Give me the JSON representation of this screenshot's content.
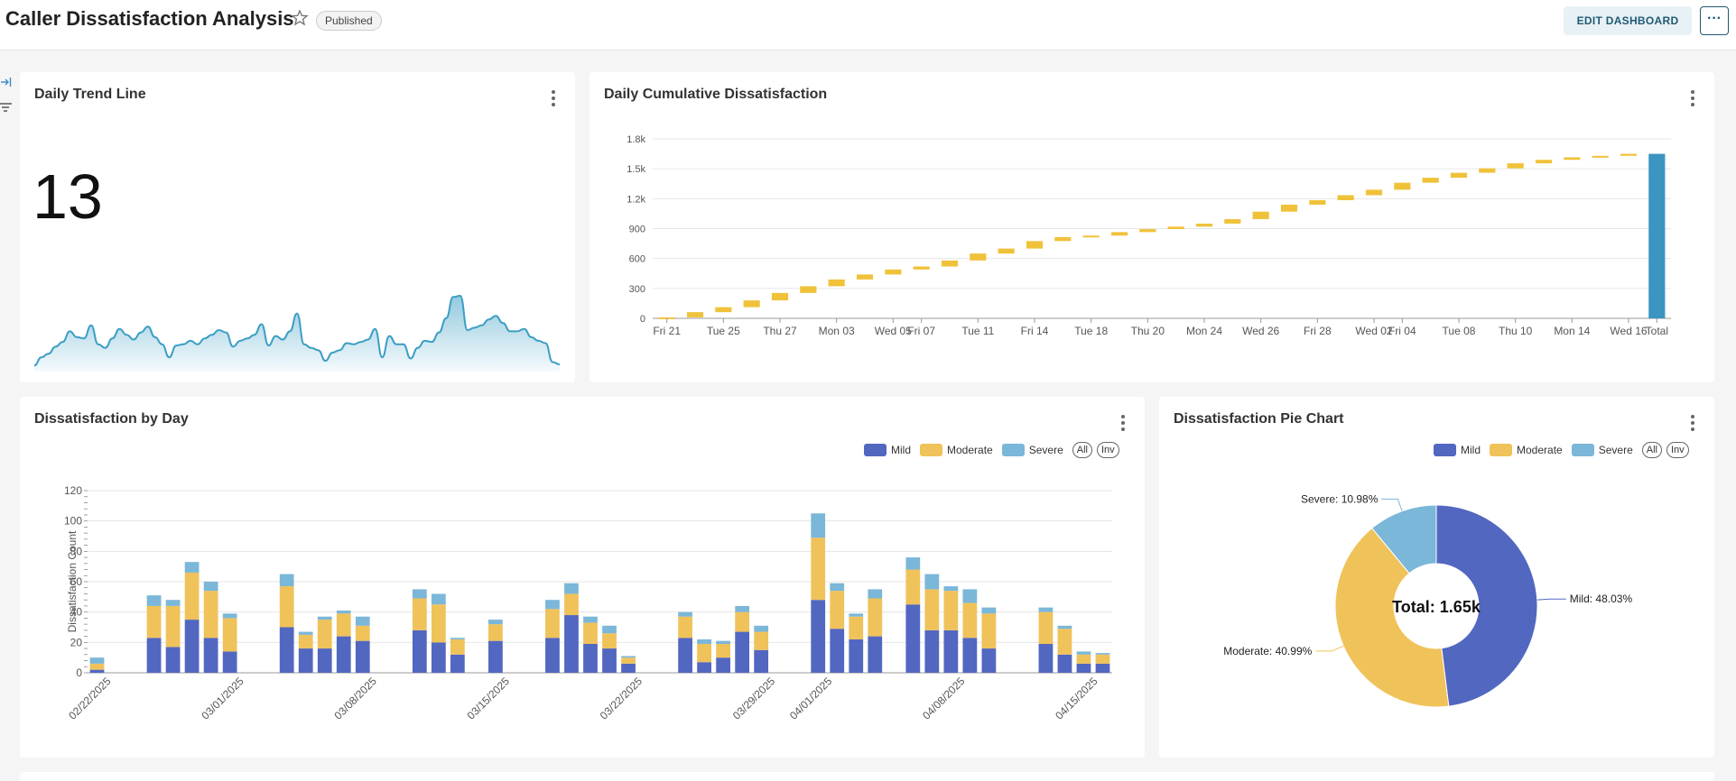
{
  "header": {
    "title": "Caller Dissatisfaction Analysis",
    "status_badge": "Published",
    "edit_button": "EDIT DASHBOARD",
    "more_button": "···"
  },
  "sidebar": {
    "icons": [
      "collapse-sidebar-icon",
      "filter-icon"
    ]
  },
  "colors": {
    "mild": "#5267c0",
    "moderate": "#f0c25a",
    "severe": "#7bb7d9",
    "waterfall": "#f0c23a",
    "total": "#3a95c1",
    "trend": "#3b9ec4"
  },
  "trend_card": {
    "title": "Daily Trend Line",
    "big_number": "13",
    "sparkline": [
      2,
      9,
      12,
      18,
      22,
      31,
      26,
      25,
      36,
      20,
      17,
      25,
      33,
      28,
      24,
      30,
      35,
      26,
      20,
      9,
      19,
      20,
      23,
      20,
      25,
      28,
      32,
      30,
      18,
      23,
      25,
      28,
      37,
      19,
      27,
      24,
      31,
      46,
      20,
      17,
      15,
      6,
      13,
      15,
      21,
      20,
      22,
      24,
      33,
      9,
      27,
      20,
      20,
      8,
      17,
      23,
      22,
      30,
      42,
      60,
      61,
      32,
      34,
      36,
      41,
      44,
      38,
      31,
      31,
      33,
      26,
      23,
      21,
      5,
      3
    ]
  },
  "waterfall_card": {
    "title": "Daily Cumulative Dissatisfaction",
    "chart_data": {
      "type": "bar",
      "subtype": "waterfall",
      "ylim": [
        0,
        1800
      ],
      "yticks": [
        "0",
        "300",
        "600",
        "900",
        "1.2k",
        "1.5k",
        "1.8k"
      ],
      "x_tick_labels": [
        "Fri 21",
        "Tue 25",
        "Thu 27",
        "Mon 03",
        "Wed 05",
        "Fri 07",
        "Tue 11",
        "Fri 14",
        "Tue 18",
        "Thu 20",
        "Mon 24",
        "Wed 26",
        "Fri 28",
        "Wed 02",
        "Fri 04",
        "Tue 08",
        "Thu 10",
        "Mon 14",
        "Wed 16",
        "Total"
      ],
      "cumulative": [
        10,
        62,
        112,
        180,
        255,
        322,
        390,
        440,
        490,
        520,
        580,
        650,
        700,
        775,
        815,
        830,
        865,
        895,
        920,
        950,
        995,
        1070,
        1140,
        1185,
        1235,
        1290,
        1360,
        1410,
        1460,
        1505,
        1555,
        1590,
        1615,
        1630,
        1650
      ],
      "total": 1650
    }
  },
  "day_card": {
    "title": "Dissatisfaction by Day",
    "legend": {
      "items": [
        "Mild",
        "Moderate",
        "Severe"
      ],
      "all": "All",
      "inv": "Inv"
    },
    "chart_data": {
      "type": "bar",
      "stacked": true,
      "ylabel": "Dissatisfaction Count",
      "ylim": [
        0,
        120
      ],
      "yticks": [
        "0",
        "20",
        "40",
        "60",
        "80",
        "100",
        "120"
      ],
      "x_tick_labels": [
        "02/22/2025",
        "03/01/2025",
        "03/08/2025",
        "03/15/2025",
        "03/22/2025",
        "03/29/2025",
        "04/01/2025",
        "04/08/2025",
        "04/15/2025"
      ],
      "bars": [
        {
          "slot": 0,
          "mild": 2,
          "moderate": 4,
          "severe": 4
        },
        {
          "slot": 3,
          "mild": 23,
          "moderate": 21,
          "severe": 7
        },
        {
          "slot": 4,
          "mild": 17,
          "moderate": 27,
          "severe": 4
        },
        {
          "slot": 5,
          "mild": 35,
          "moderate": 31,
          "severe": 7
        },
        {
          "slot": 6,
          "mild": 23,
          "moderate": 31,
          "severe": 6
        },
        {
          "slot": 7,
          "mild": 14,
          "moderate": 22,
          "severe": 3
        },
        {
          "slot": 10,
          "mild": 30,
          "moderate": 27,
          "severe": 8
        },
        {
          "slot": 11,
          "mild": 16,
          "moderate": 9,
          "severe": 2
        },
        {
          "slot": 12,
          "mild": 16,
          "moderate": 19,
          "severe": 2
        },
        {
          "slot": 13,
          "mild": 24,
          "moderate": 15,
          "severe": 2
        },
        {
          "slot": 14,
          "mild": 21,
          "moderate": 10,
          "severe": 6
        },
        {
          "slot": 17,
          "mild": 28,
          "moderate": 21,
          "severe": 6
        },
        {
          "slot": 18,
          "mild": 20,
          "moderate": 25,
          "severe": 7
        },
        {
          "slot": 19,
          "mild": 12,
          "moderate": 10,
          "severe": 1
        },
        {
          "slot": 21,
          "mild": 21,
          "moderate": 11,
          "severe": 3
        },
        {
          "slot": 24,
          "mild": 23,
          "moderate": 19,
          "severe": 6
        },
        {
          "slot": 25,
          "mild": 38,
          "moderate": 14,
          "severe": 7
        },
        {
          "slot": 26,
          "mild": 19,
          "moderate": 14,
          "severe": 4
        },
        {
          "slot": 27,
          "mild": 16,
          "moderate": 10,
          "severe": 5
        },
        {
          "slot": 28,
          "mild": 6,
          "moderate": 4,
          "severe": 1
        },
        {
          "slot": 31,
          "mild": 23,
          "moderate": 14,
          "severe": 3
        },
        {
          "slot": 32,
          "mild": 7,
          "moderate": 12,
          "severe": 3
        },
        {
          "slot": 33,
          "mild": 10,
          "moderate": 9,
          "severe": 2
        },
        {
          "slot": 34,
          "mild": 27,
          "moderate": 13,
          "severe": 4
        },
        {
          "slot": 35,
          "mild": 15,
          "moderate": 12,
          "severe": 4
        },
        {
          "slot": 38,
          "mild": 48,
          "moderate": 41,
          "severe": 16
        },
        {
          "slot": 39,
          "mild": 29,
          "moderate": 25,
          "severe": 5
        },
        {
          "slot": 40,
          "mild": 22,
          "moderate": 15,
          "severe": 2
        },
        {
          "slot": 41,
          "mild": 24,
          "moderate": 25,
          "severe": 6
        },
        {
          "slot": 43,
          "mild": 45,
          "moderate": 23,
          "severe": 8
        },
        {
          "slot": 44,
          "mild": 28,
          "moderate": 27,
          "severe": 10
        },
        {
          "slot": 45,
          "mild": 28,
          "moderate": 26,
          "severe": 3
        },
        {
          "slot": 46,
          "mild": 23,
          "moderate": 23,
          "severe": 9
        },
        {
          "slot": 47,
          "mild": 16,
          "moderate": 23,
          "severe": 4
        },
        {
          "slot": 50,
          "mild": 19,
          "moderate": 21,
          "severe": 3
        },
        {
          "slot": 51,
          "mild": 12,
          "moderate": 17,
          "severe": 2
        },
        {
          "slot": 52,
          "mild": 6,
          "moderate": 6,
          "severe": 2
        },
        {
          "slot": 53,
          "mild": 6,
          "moderate": 6,
          "severe": 1
        }
      ],
      "slots": 54
    }
  },
  "pie_card": {
    "title": "Dissatisfaction Pie Chart",
    "legend": {
      "items": [
        "Mild",
        "Moderate",
        "Severe"
      ],
      "all": "All",
      "inv": "Inv"
    },
    "chart_data": {
      "type": "pie",
      "donut": true,
      "center_label": "Total: 1.65k",
      "slices": [
        {
          "name": "Mild",
          "percent": 48.03,
          "label": "Mild: 48.03%"
        },
        {
          "name": "Moderate",
          "percent": 40.99,
          "label": "Moderate: 40.99%"
        },
        {
          "name": "Severe",
          "percent": 10.98,
          "label": "Severe: 10.98%"
        }
      ]
    }
  }
}
